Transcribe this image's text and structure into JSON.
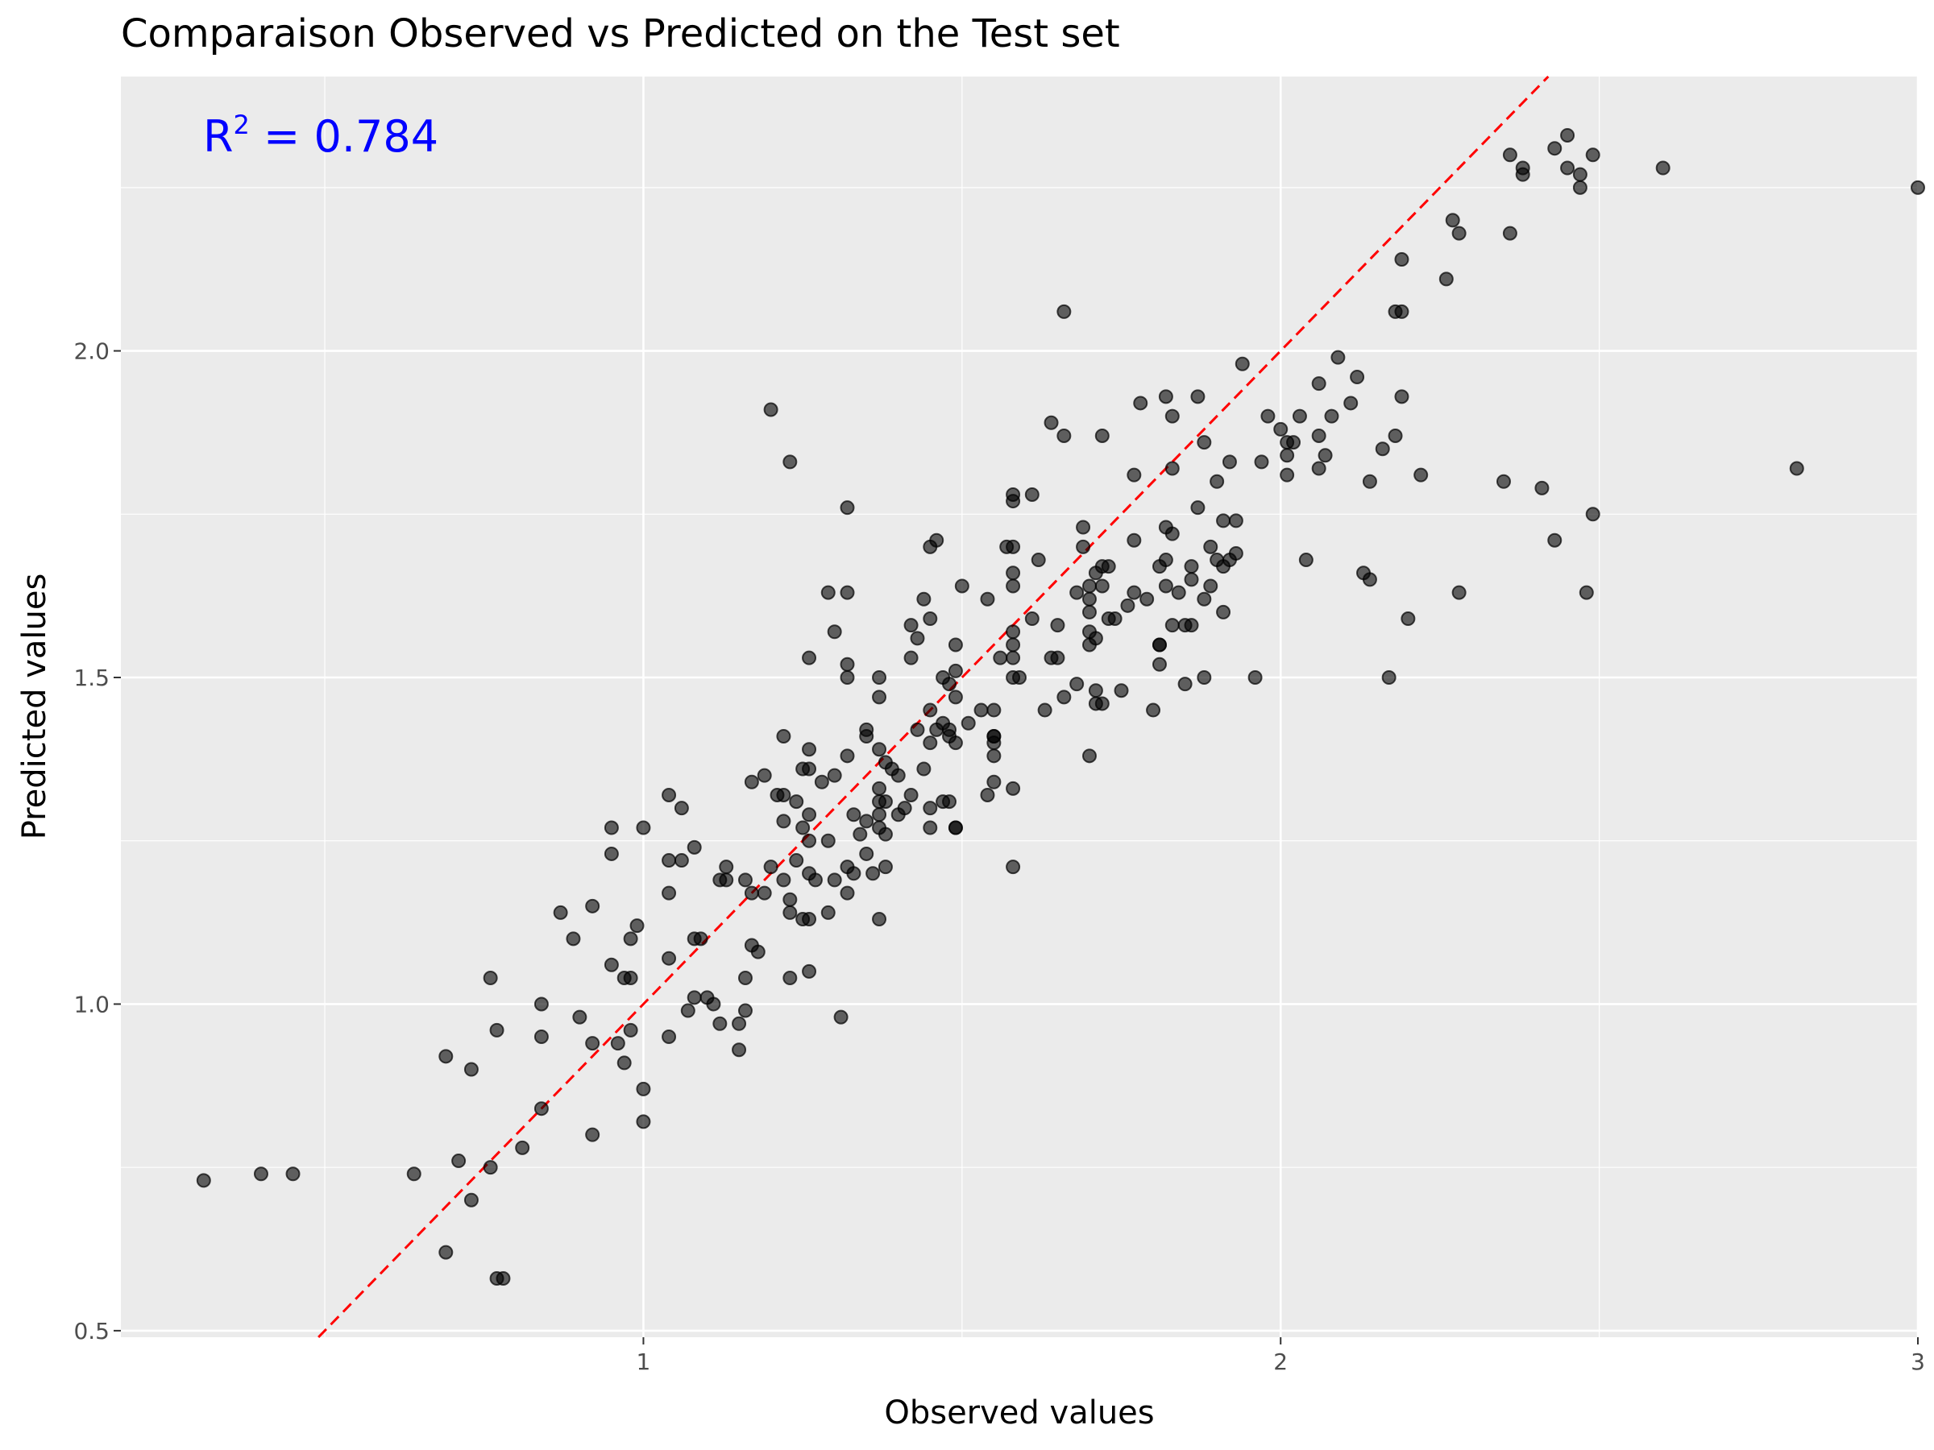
{
  "chart_data": {
    "type": "scatter",
    "title": "Comparaison Observed vs Predicted on the Test set",
    "xlabel": "Observed values",
    "ylabel": "Predicted values",
    "xlim": [
      0.18,
      3.0
    ],
    "ylim": [
      0.49,
      2.42
    ],
    "x_ticks": [
      1,
      2,
      3
    ],
    "x_tick_labels": [
      "1",
      "2",
      "3"
    ],
    "y_ticks": [
      0.5,
      1.0,
      1.5,
      2.0
    ],
    "y_tick_labels": [
      "0.5",
      "1.0",
      "1.5",
      "2.0"
    ],
    "grid": true,
    "background": "#ebebeb",
    "point_color": "#000000",
    "reference_line": {
      "slope": 1,
      "intercept": 0,
      "color": "#ff0000",
      "style": "dashed"
    },
    "annotation": {
      "base": "R",
      "superscript": "2",
      "text": " = 0.784",
      "color": "#0000ff"
    },
    "points": [
      [
        0.31,
        0.73
      ],
      [
        0.4,
        0.74
      ],
      [
        0.45,
        0.74
      ],
      [
        0.64,
        0.74
      ],
      [
        0.69,
        0.92
      ],
      [
        0.71,
        0.76
      ],
      [
        0.73,
        0.7
      ],
      [
        0.73,
        0.9
      ],
      [
        0.69,
        0.62
      ],
      [
        0.76,
        0.75
      ],
      [
        0.76,
        1.04
      ],
      [
        0.77,
        0.96
      ],
      [
        0.77,
        0.58
      ],
      [
        0.78,
        0.58
      ],
      [
        0.81,
        0.78
      ],
      [
        0.84,
        0.84
      ],
      [
        0.84,
        0.95
      ],
      [
        0.84,
        1.0
      ],
      [
        0.87,
        1.14
      ],
      [
        0.89,
        1.1
      ],
      [
        0.9,
        0.98
      ],
      [
        0.92,
        1.15
      ],
      [
        0.92,
        0.94
      ],
      [
        0.92,
        0.8
      ],
      [
        0.95,
        1.06
      ],
      [
        0.95,
        1.23
      ],
      [
        0.95,
        1.27
      ],
      [
        0.96,
        0.94
      ],
      [
        0.97,
        1.04
      ],
      [
        0.97,
        0.91
      ],
      [
        0.98,
        0.96
      ],
      [
        0.98,
        1.1
      ],
      [
        0.98,
        1.04
      ],
      [
        0.99,
        1.12
      ],
      [
        1.0,
        0.87
      ],
      [
        1.0,
        0.82
      ],
      [
        1.0,
        1.27
      ],
      [
        1.04,
        1.32
      ],
      [
        1.04,
        1.22
      ],
      [
        1.04,
        1.17
      ],
      [
        1.04,
        1.07
      ],
      [
        1.04,
        0.95
      ],
      [
        1.06,
        1.3
      ],
      [
        1.06,
        1.22
      ],
      [
        1.07,
        0.99
      ],
      [
        1.08,
        1.24
      ],
      [
        1.08,
        1.01
      ],
      [
        1.08,
        1.1
      ],
      [
        1.09,
        1.1
      ],
      [
        1.1,
        1.01
      ],
      [
        1.11,
        1.0
      ],
      [
        1.12,
        1.19
      ],
      [
        1.12,
        0.97
      ],
      [
        1.13,
        1.21
      ],
      [
        1.13,
        1.19
      ],
      [
        1.15,
        0.97
      ],
      [
        1.15,
        0.93
      ],
      [
        1.16,
        0.99
      ],
      [
        1.16,
        1.04
      ],
      [
        1.16,
        1.19
      ],
      [
        1.17,
        1.17
      ],
      [
        1.17,
        1.34
      ],
      [
        1.17,
        1.09
      ],
      [
        1.18,
        1.08
      ],
      [
        1.19,
        1.35
      ],
      [
        1.19,
        1.17
      ],
      [
        1.2,
        1.21
      ],
      [
        1.2,
        1.91
      ],
      [
        1.21,
        1.32
      ],
      [
        1.22,
        1.19
      ],
      [
        1.22,
        1.41
      ],
      [
        1.22,
        1.32
      ],
      [
        1.22,
        1.28
      ],
      [
        1.23,
        1.83
      ],
      [
        1.23,
        1.16
      ],
      [
        1.23,
        1.14
      ],
      [
        1.23,
        1.04
      ],
      [
        1.24,
        1.22
      ],
      [
        1.24,
        1.31
      ],
      [
        1.25,
        1.36
      ],
      [
        1.25,
        1.27
      ],
      [
        1.25,
        1.13
      ],
      [
        1.26,
        1.53
      ],
      [
        1.26,
        1.39
      ],
      [
        1.26,
        1.36
      ],
      [
        1.26,
        1.29
      ],
      [
        1.26,
        1.25
      ],
      [
        1.26,
        1.2
      ],
      [
        1.26,
        1.13
      ],
      [
        1.26,
        1.05
      ],
      [
        1.27,
        1.19
      ],
      [
        1.28,
        1.34
      ],
      [
        1.29,
        1.63
      ],
      [
        1.29,
        1.25
      ],
      [
        1.29,
        1.14
      ],
      [
        1.3,
        1.57
      ],
      [
        1.3,
        1.35
      ],
      [
        1.3,
        1.19
      ],
      [
        1.31,
        0.98
      ],
      [
        1.32,
        1.76
      ],
      [
        1.32,
        1.63
      ],
      [
        1.32,
        1.52
      ],
      [
        1.32,
        1.5
      ],
      [
        1.32,
        1.38
      ],
      [
        1.32,
        1.21
      ],
      [
        1.32,
        1.17
      ],
      [
        1.33,
        1.29
      ],
      [
        1.33,
        1.2
      ],
      [
        1.34,
        1.26
      ],
      [
        1.35,
        1.42
      ],
      [
        1.35,
        1.41
      ],
      [
        1.35,
        1.28
      ],
      [
        1.35,
        1.23
      ],
      [
        1.36,
        1.2
      ],
      [
        1.37,
        1.5
      ],
      [
        1.37,
        1.47
      ],
      [
        1.37,
        1.39
      ],
      [
        1.37,
        1.33
      ],
      [
        1.37,
        1.31
      ],
      [
        1.37,
        1.29
      ],
      [
        1.37,
        1.27
      ],
      [
        1.37,
        1.13
      ],
      [
        1.38,
        1.37
      ],
      [
        1.38,
        1.31
      ],
      [
        1.38,
        1.26
      ],
      [
        1.38,
        1.21
      ],
      [
        1.39,
        1.36
      ],
      [
        1.4,
        1.35
      ],
      [
        1.4,
        1.29
      ],
      [
        1.41,
        1.3
      ],
      [
        1.42,
        1.58
      ],
      [
        1.42,
        1.53
      ],
      [
        1.42,
        1.32
      ],
      [
        1.43,
        1.56
      ],
      [
        1.43,
        1.42
      ],
      [
        1.44,
        1.36
      ],
      [
        1.44,
        1.62
      ],
      [
        1.45,
        1.7
      ],
      [
        1.45,
        1.59
      ],
      [
        1.45,
        1.45
      ],
      [
        1.45,
        1.4
      ],
      [
        1.45,
        1.3
      ],
      [
        1.45,
        1.27
      ],
      [
        1.46,
        1.71
      ],
      [
        1.46,
        1.42
      ],
      [
        1.47,
        1.5
      ],
      [
        1.47,
        1.43
      ],
      [
        1.47,
        1.31
      ],
      [
        1.48,
        1.49
      ],
      [
        1.48,
        1.42
      ],
      [
        1.48,
        1.31
      ],
      [
        1.48,
        1.41
      ],
      [
        1.49,
        1.55
      ],
      [
        1.49,
        1.51
      ],
      [
        1.49,
        1.47
      ],
      [
        1.49,
        1.4
      ],
      [
        1.49,
        1.27
      ],
      [
        1.49,
        1.27
      ],
      [
        1.5,
        1.64
      ],
      [
        1.51,
        1.43
      ],
      [
        1.53,
        1.45
      ],
      [
        1.54,
        1.32
      ],
      [
        1.54,
        1.62
      ],
      [
        1.55,
        1.41
      ],
      [
        1.55,
        1.45
      ],
      [
        1.55,
        1.34
      ],
      [
        1.55,
        1.4
      ],
      [
        1.55,
        1.38
      ],
      [
        1.55,
        1.41
      ],
      [
        1.56,
        1.53
      ],
      [
        1.57,
        1.7
      ],
      [
        1.58,
        1.7
      ],
      [
        1.58,
        1.66
      ],
      [
        1.58,
        1.64
      ],
      [
        1.58,
        1.57
      ],
      [
        1.58,
        1.55
      ],
      [
        1.58,
        1.53
      ],
      [
        1.58,
        1.5
      ],
      [
        1.58,
        1.21
      ],
      [
        1.58,
        1.33
      ],
      [
        1.58,
        1.78
      ],
      [
        1.58,
        1.77
      ],
      [
        1.59,
        1.5
      ],
      [
        1.61,
        1.78
      ],
      [
        1.61,
        1.59
      ],
      [
        1.62,
        1.68
      ],
      [
        1.63,
        1.45
      ],
      [
        1.64,
        1.89
      ],
      [
        1.64,
        1.53
      ],
      [
        1.65,
        1.58
      ],
      [
        1.65,
        1.53
      ],
      [
        1.66,
        1.87
      ],
      [
        1.66,
        1.47
      ],
      [
        1.66,
        2.06
      ],
      [
        1.68,
        1.63
      ],
      [
        1.68,
        1.49
      ],
      [
        1.69,
        1.73
      ],
      [
        1.69,
        1.7
      ],
      [
        1.7,
        1.38
      ],
      [
        1.7,
        1.57
      ],
      [
        1.7,
        1.55
      ],
      [
        1.7,
        1.6
      ],
      [
        1.7,
        1.62
      ],
      [
        1.7,
        1.64
      ],
      [
        1.71,
        1.66
      ],
      [
        1.71,
        1.56
      ],
      [
        1.71,
        1.48
      ],
      [
        1.71,
        1.46
      ],
      [
        1.72,
        1.67
      ],
      [
        1.72,
        1.64
      ],
      [
        1.72,
        1.87
      ],
      [
        1.72,
        1.46
      ],
      [
        1.73,
        1.67
      ],
      [
        1.73,
        1.59
      ],
      [
        1.74,
        1.59
      ],
      [
        1.75,
        1.48
      ],
      [
        1.76,
        1.61
      ],
      [
        1.77,
        1.81
      ],
      [
        1.77,
        1.63
      ],
      [
        1.77,
        1.71
      ],
      [
        1.78,
        1.92
      ],
      [
        1.79,
        1.62
      ],
      [
        1.8,
        1.45
      ],
      [
        1.81,
        1.67
      ],
      [
        1.81,
        1.52
      ],
      [
        1.81,
        1.55
      ],
      [
        1.81,
        1.55
      ],
      [
        1.82,
        1.93
      ],
      [
        1.82,
        1.73
      ],
      [
        1.82,
        1.64
      ],
      [
        1.82,
        1.68
      ],
      [
        1.83,
        1.72
      ],
      [
        1.83,
        1.82
      ],
      [
        1.83,
        1.9
      ],
      [
        1.83,
        1.58
      ],
      [
        1.84,
        1.63
      ],
      [
        1.85,
        1.58
      ],
      [
        1.85,
        1.49
      ],
      [
        1.86,
        1.65
      ],
      [
        1.86,
        1.58
      ],
      [
        1.86,
        1.67
      ],
      [
        1.87,
        1.76
      ],
      [
        1.87,
        1.93
      ],
      [
        1.88,
        1.5
      ],
      [
        1.88,
        1.62
      ],
      [
        1.88,
        1.86
      ],
      [
        1.89,
        1.7
      ],
      [
        1.89,
        1.64
      ],
      [
        1.9,
        1.8
      ],
      [
        1.9,
        1.68
      ],
      [
        1.91,
        1.6
      ],
      [
        1.91,
        1.74
      ],
      [
        1.91,
        1.67
      ],
      [
        1.92,
        1.83
      ],
      [
        1.92,
        1.68
      ],
      [
        1.93,
        1.74
      ],
      [
        1.93,
        1.69
      ],
      [
        1.94,
        1.98
      ],
      [
        1.96,
        1.5
      ],
      [
        1.97,
        1.83
      ],
      [
        1.98,
        1.9
      ],
      [
        2.0,
        1.88
      ],
      [
        2.01,
        1.84
      ],
      [
        2.01,
        1.86
      ],
      [
        2.01,
        1.81
      ],
      [
        2.02,
        1.86
      ],
      [
        2.03,
        1.9
      ],
      [
        2.04,
        1.68
      ],
      [
        2.06,
        1.95
      ],
      [
        2.06,
        1.82
      ],
      [
        2.06,
        1.87
      ],
      [
        2.07,
        1.84
      ],
      [
        2.08,
        1.9
      ],
      [
        2.09,
        1.99
      ],
      [
        2.11,
        1.92
      ],
      [
        2.12,
        1.96
      ],
      [
        2.13,
        1.66
      ],
      [
        2.14,
        1.65
      ],
      [
        2.14,
        1.8
      ],
      [
        2.16,
        1.85
      ],
      [
        2.17,
        1.5
      ],
      [
        2.18,
        1.87
      ],
      [
        2.18,
        2.06
      ],
      [
        2.19,
        2.06
      ],
      [
        2.19,
        1.93
      ],
      [
        2.19,
        2.14
      ],
      [
        2.2,
        1.59
      ],
      [
        2.22,
        1.81
      ],
      [
        2.26,
        2.11
      ],
      [
        2.27,
        2.2
      ],
      [
        2.28,
        2.18
      ],
      [
        2.28,
        1.63
      ],
      [
        2.35,
        1.8
      ],
      [
        2.36,
        2.18
      ],
      [
        2.36,
        2.3
      ],
      [
        2.38,
        2.28
      ],
      [
        2.38,
        2.27
      ],
      [
        2.41,
        1.79
      ],
      [
        2.43,
        1.71
      ],
      [
        2.43,
        2.31
      ],
      [
        2.45,
        2.33
      ],
      [
        2.45,
        2.28
      ],
      [
        2.47,
        2.27
      ],
      [
        2.47,
        2.25
      ],
      [
        2.48,
        1.63
      ],
      [
        2.49,
        1.75
      ],
      [
        2.49,
        2.3
      ],
      [
        2.6,
        2.28
      ],
      [
        2.81,
        1.82
      ],
      [
        3.0,
        2.25
      ]
    ]
  }
}
